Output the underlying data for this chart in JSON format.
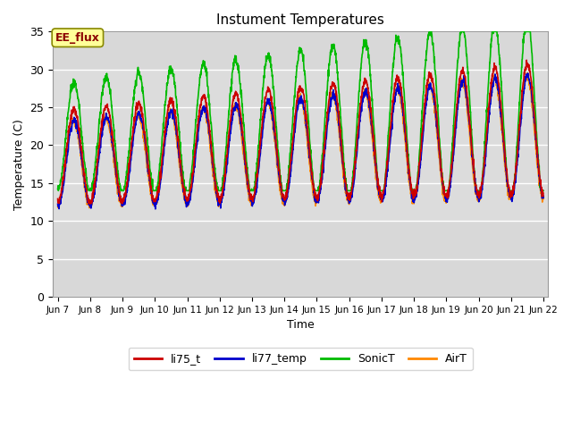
{
  "title": "Instument Temperatures",
  "xlabel": "Time",
  "ylabel": "Temperature (C)",
  "ylim": [
    0,
    35
  ],
  "yticks": [
    0,
    5,
    10,
    15,
    20,
    25,
    30,
    35
  ],
  "xtick_labels": [
    "Jun 7",
    "Jun 8",
    "Jun 9",
    "Jun 10",
    "Jun 11",
    "Jun 12",
    "Jun 13",
    "Jun 14",
    "Jun 15",
    "Jun 16",
    "Jun 17",
    "Jun 18",
    "Jun 19",
    "Jun 20",
    "Jun 21",
    "Jun 22"
  ],
  "annotation_text": "EE_flux",
  "annotation_color": "#8B0000",
  "annotation_bg": "#FFFF99",
  "series": {
    "li75_t": {
      "color": "#CC0000",
      "lw": 1.2
    },
    "li77_temp": {
      "color": "#0000CC",
      "lw": 1.2
    },
    "SonicT": {
      "color": "#00BB00",
      "lw": 1.2
    },
    "AirT": {
      "color": "#FF8800",
      "lw": 1.2
    }
  },
  "band_inner_color": "#DCDCDC",
  "band_outer_color": "#C8C8C8",
  "axes_bg": "#D8D8D8",
  "grid_color": "#FFFFFF",
  "fig_bg": "#FFFFFF"
}
